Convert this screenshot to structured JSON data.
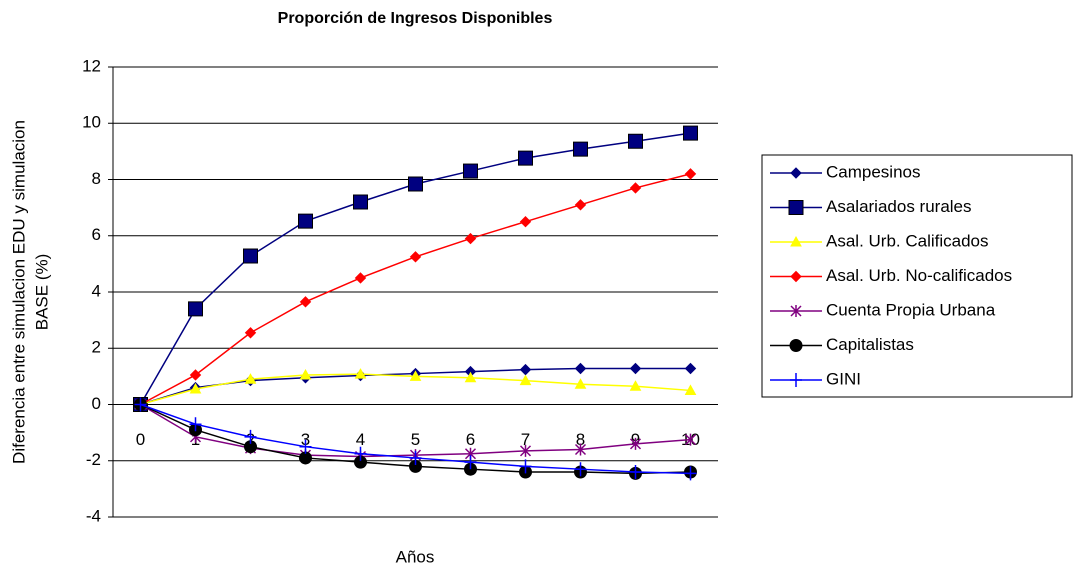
{
  "chart_data": {
    "type": "line",
    "title": "Proporción de Ingresos Disponibles",
    "x_label": "Años",
    "y_label": [
      "Diferencia entre simulacion EDU y simulacion",
      "BASE (%)"
    ],
    "categories": [
      "0",
      "1",
      "2",
      "3",
      "4",
      "5",
      "6",
      "7",
      "8",
      "9",
      "10"
    ],
    "ylim": [
      -4,
      12
    ],
    "yticks": [
      -4,
      -2,
      0,
      2,
      4,
      6,
      8,
      10,
      12
    ],
    "grid": true,
    "legend": "right",
    "series": [
      {
        "name": "Campesinos",
        "color": "#000080",
        "marker": "diamond",
        "values": [
          0,
          0.6,
          0.85,
          0.95,
          1.03,
          1.1,
          1.17,
          1.24,
          1.28,
          1.28,
          1.28
        ]
      },
      {
        "name": "Asalariados rurales",
        "color": "#000080",
        "marker": "square",
        "values": [
          0,
          3.4,
          5.28,
          6.52,
          7.2,
          7.84,
          8.3,
          8.76,
          9.08,
          9.36,
          9.65
        ]
      },
      {
        "name": "Asal. Urb. Calificados",
        "color": "#ffff00",
        "marker": "triangle",
        "values": [
          0,
          0.55,
          0.9,
          1.05,
          1.08,
          1.0,
          0.95,
          0.85,
          0.72,
          0.65,
          0.5
        ]
      },
      {
        "name": "Asal. Urb. No-calificados",
        "color": "#ff0000",
        "marker": "diamond",
        "values": [
          0,
          1.05,
          2.55,
          3.65,
          4.5,
          5.25,
          5.9,
          6.5,
          7.1,
          7.7,
          8.2
        ]
      },
      {
        "name": "Cuenta Propia Urbana",
        "color": "#800080",
        "marker": "asterisk",
        "values": [
          0,
          -1.15,
          -1.55,
          -1.8,
          -1.85,
          -1.8,
          -1.75,
          -1.65,
          -1.6,
          -1.4,
          -1.25
        ]
      },
      {
        "name": "Capitalistas",
        "color": "#000000",
        "marker": "circle",
        "values": [
          0,
          -0.9,
          -1.5,
          -1.9,
          -2.05,
          -2.2,
          -2.3,
          -2.4,
          -2.4,
          -2.45,
          -2.4
        ]
      },
      {
        "name": "GINI",
        "color": "#0000ff",
        "marker": "plus",
        "values": [
          0,
          -0.7,
          -1.15,
          -1.5,
          -1.75,
          -1.9,
          -2.05,
          -2.2,
          -2.3,
          -2.4,
          -2.45
        ]
      }
    ]
  }
}
